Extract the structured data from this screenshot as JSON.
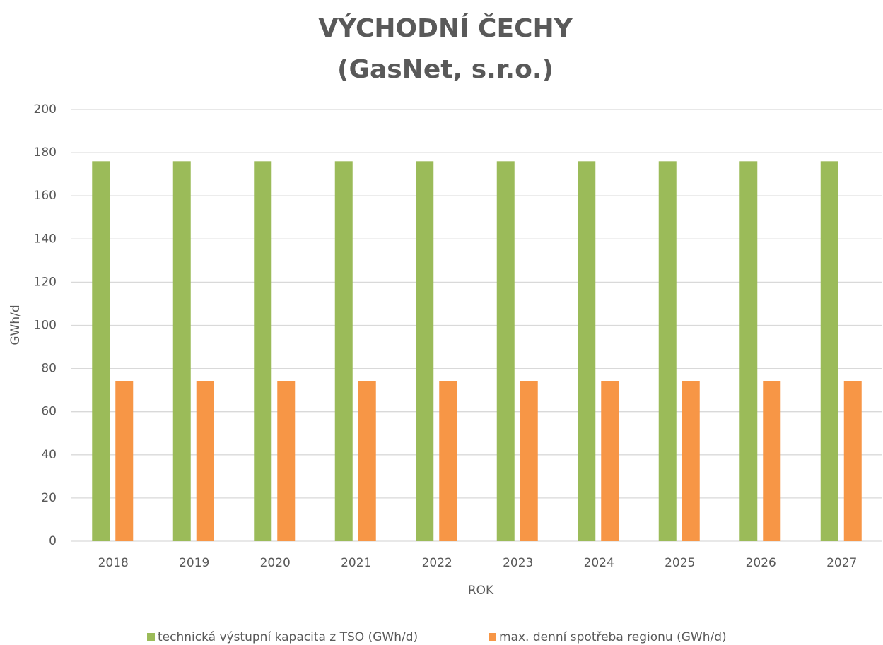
{
  "chart_data": {
    "type": "bar",
    "title": "VÝCHODNÍ ČECHY",
    "subtitle": "(GasNet, s.r.o.)",
    "x_label": "ROK",
    "y_label": "GWh/d",
    "categories": [
      "2018",
      "2019",
      "2020",
      "2021",
      "2022",
      "2023",
      "2024",
      "2025",
      "2026",
      "2027"
    ],
    "series": [
      {
        "name": "technická výstupní kapacita z TSO (GWh/d)",
        "color": "#9bbb59",
        "values": [
          176,
          176,
          176,
          176,
          176,
          176,
          176,
          176,
          176,
          176
        ]
      },
      {
        "name": "max. denní spotřeba regionu (GWh/d)",
        "color": "#f79646",
        "values": [
          74,
          74,
          74,
          74,
          74,
          74,
          74,
          74,
          74,
          74
        ]
      }
    ],
    "ylim": [
      0,
      200
    ],
    "yticks": [
      0,
      20,
      40,
      60,
      80,
      100,
      120,
      140,
      160,
      180,
      200
    ],
    "grid": true,
    "legend": "bottom"
  }
}
